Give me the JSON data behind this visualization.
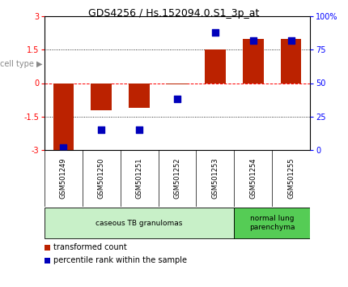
{
  "title": "GDS4256 / Hs.152094.0.S1_3p_at",
  "samples": [
    "GSM501249",
    "GSM501250",
    "GSM501251",
    "GSM501252",
    "GSM501253",
    "GSM501254",
    "GSM501255"
  ],
  "transformed_count": [
    -3.0,
    -1.2,
    -1.1,
    -0.05,
    1.5,
    2.0,
    2.0
  ],
  "percentile_rank": [
    2,
    15,
    15,
    38,
    88,
    82,
    82
  ],
  "ylim_left": [
    -3,
    3
  ],
  "ylim_right": [
    0,
    100
  ],
  "yticks_left": [
    -3,
    -1.5,
    0,
    1.5,
    3
  ],
  "yticks_right": [
    0,
    25,
    50,
    75,
    100
  ],
  "ytick_labels_left": [
    "-3",
    "-1.5",
    "0",
    "1.5",
    "3"
  ],
  "ytick_labels_right": [
    "0",
    "25",
    "50",
    "75",
    "100%"
  ],
  "bar_color": "#bb2200",
  "dot_color": "#0000bb",
  "cell_type_groups": [
    {
      "label": "caseous TB granulomas",
      "samples": [
        0,
        1,
        2,
        3,
        4
      ],
      "color": "#c8f0c8"
    },
    {
      "label": "normal lung\nparenchyma",
      "samples": [
        5,
        6
      ],
      "color": "#55cc55"
    }
  ],
  "cell_type_label": "cell type",
  "legend_items": [
    {
      "color": "#bb2200",
      "label": "transformed count"
    },
    {
      "color": "#0000bb",
      "label": "percentile rank within the sample"
    }
  ],
  "bg_color": "#ffffff",
  "plot_bg_color": "#ffffff",
  "xlabel_area_color": "#d0d0d0",
  "bar_width": 0.55,
  "dot_size": 30
}
